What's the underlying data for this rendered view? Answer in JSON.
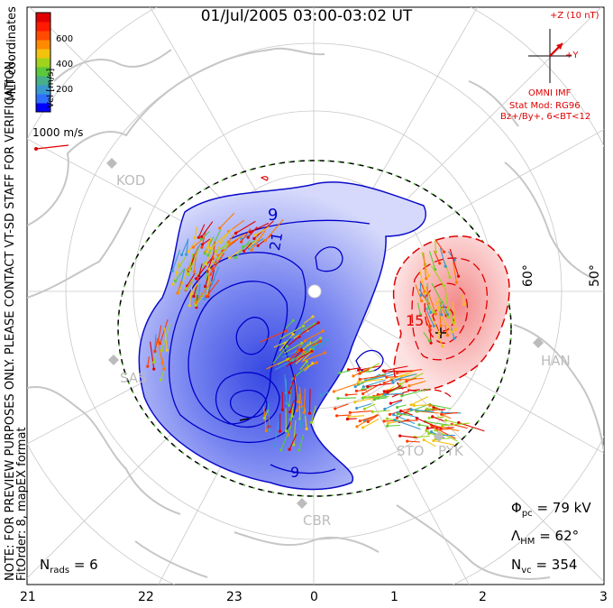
{
  "title": "01/Jul/2005 03:00-03:02 UT",
  "colorbar": {
    "label": "Vel [m/s]",
    "ticks": [
      "600",
      "400",
      "200"
    ],
    "colors": [
      "#0000ff",
      "#2f6fff",
      "#3a9ad0",
      "#47b08a",
      "#5cc83c",
      "#a0d21e",
      "#f2c20f",
      "#ff8a00",
      "#ff4a00",
      "#ff1a00",
      "#e00000"
    ]
  },
  "coordinates_label": "MLT coordinates",
  "scale_vector": {
    "label": "1000 m/s",
    "color": "#e00000"
  },
  "preview_note": "NOTE: FOR PREVIEW PURPOSES ONLY. PLEASE CONTACT VT-SD STAFF FOR VERIFICATION.",
  "fit_info": "FitOrder: 8, mapEX format",
  "imf": {
    "bz_label": "+Z (10 nT)",
    "by_label": "+Y",
    "source": "OMNI IMF",
    "model_line1": "Stat Mod: RG96",
    "model_line2": "Bz+/By+, 6<BT<12"
  },
  "stations": [
    "KOD",
    "SAS",
    "HAN",
    "STO",
    "PYK",
    "CBR"
  ],
  "contour_labels": [
    "9",
    "21",
    "15",
    "9"
  ],
  "lat_labels": [
    "60°",
    "50°"
  ],
  "mlt_labels": [
    "21",
    "22",
    "23",
    "0",
    "1",
    "2",
    "3"
  ],
  "stats": {
    "phi_symbol": "Φ",
    "phi_sub": "pc",
    "phi_value": "= 79 kV",
    "lambda_symbol": "Λ",
    "lambda_sub": "HM",
    "lambda_value": "= 62°",
    "nvc_symbol": "N",
    "nvc_sub": "vc",
    "nvc_value": "= 354",
    "nrads_symbol": "N",
    "nrads_sub": "rads",
    "nrads_value": "= 6"
  }
}
